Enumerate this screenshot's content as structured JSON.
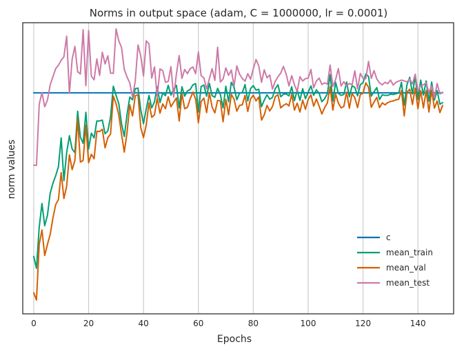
{
  "chart_data": {
    "type": "line",
    "title": "Norms in output space (adam, C = 1000000, lr = 0.0001)",
    "xlabel": "Epochs",
    "ylabel": "norm values",
    "xlim": [
      -4,
      153
    ],
    "ylim": [
      0,
      1
    ],
    "x_ticks": [
      0,
      20,
      40,
      60,
      80,
      100,
      120,
      140
    ],
    "y_ticks_shown": false,
    "grid": "vertical",
    "legend_position": "lower-right",
    "colors": {
      "c": "#0072B2",
      "mean_train": "#009E73",
      "mean_val": "#D55E00",
      "mean_test": "#CC79A7",
      "axes": "#262626",
      "grid": "#cccccc"
    },
    "series": [
      {
        "name": "c",
        "x": [
          0,
          149
        ],
        "values": [
          0.7702,
          0.7702
        ]
      },
      {
        "name": "mean_train",
        "x": [
          0,
          1,
          2,
          3,
          4,
          5,
          6,
          7,
          8,
          9,
          10,
          11,
          12,
          13,
          14,
          15,
          16,
          17,
          18,
          19,
          20,
          21,
          22,
          23,
          24,
          25,
          26,
          27,
          28,
          29,
          30,
          31,
          32,
          33,
          34,
          35,
          36,
          37,
          38,
          39,
          40,
          41,
          42,
          43,
          44,
          45,
          46,
          47,
          48,
          49,
          50,
          51,
          52,
          53,
          54,
          55,
          56,
          57,
          58,
          59,
          60,
          61,
          62,
          63,
          64,
          65,
          66,
          67,
          68,
          69,
          70,
          71,
          72,
          73,
          74,
          75,
          76,
          77,
          78,
          79,
          80,
          81,
          82,
          83,
          84,
          85,
          86,
          87,
          88,
          89,
          90,
          91,
          92,
          93,
          94,
          95,
          96,
          97,
          98,
          99,
          100,
          101,
          102,
          103,
          104,
          105,
          106,
          107,
          108,
          109,
          110,
          111,
          112,
          113,
          114,
          115,
          116,
          117,
          118,
          119,
          120,
          121,
          122,
          123,
          124,
          125,
          126,
          127,
          128,
          129,
          130,
          131,
          132,
          133,
          134,
          135,
          136,
          137,
          138,
          139,
          140,
          141,
          142,
          143,
          144,
          145,
          146,
          147,
          148,
          149
        ],
        "values": [
          0.182,
          0.139,
          0.287,
          0.372,
          0.292,
          0.33,
          0.409,
          0.445,
          0.472,
          0.504,
          0.608,
          0.454,
          0.555,
          0.616,
          0.568,
          0.555,
          0.704,
          0.611,
          0.589,
          0.7,
          0.568,
          0.625,
          0.608,
          0.669,
          0.669,
          0.672,
          0.623,
          0.633,
          0.684,
          0.794,
          0.761,
          0.731,
          0.659,
          0.613,
          0.692,
          0.755,
          0.745,
          0.785,
          0.787,
          0.709,
          0.659,
          0.712,
          0.761,
          0.716,
          0.738,
          0.792,
          0.735,
          0.77,
          0.76,
          0.797,
          0.762,
          0.783,
          0.797,
          0.716,
          0.792,
          0.758,
          0.777,
          0.782,
          0.799,
          0.803,
          0.701,
          0.793,
          0.798,
          0.758,
          0.804,
          0.76,
          0.754,
          0.786,
          0.764,
          0.716,
          0.794,
          0.738,
          0.808,
          0.79,
          0.745,
          0.769,
          0.771,
          0.8,
          0.741,
          0.785,
          0.796,
          0.78,
          0.783,
          0.72,
          0.744,
          0.763,
          0.747,
          0.754,
          0.785,
          0.799,
          0.756,
          0.765,
          0.766,
          0.759,
          0.792,
          0.742,
          0.78,
          0.743,
          0.785,
          0.749,
          0.772,
          0.795,
          0.761,
          0.781,
          0.768,
          0.738,
          0.749,
          0.767,
          0.836,
          0.74,
          0.808,
          0.768,
          0.761,
          0.764,
          0.809,
          0.756,
          0.795,
          0.79,
          0.759,
          0.799,
          0.807,
          0.838,
          0.829,
          0.758,
          0.774,
          0.789,
          0.746,
          0.763,
          0.761,
          0.761,
          0.765,
          0.764,
          0.767,
          0.769,
          0.808,
          0.726,
          0.799,
          0.826,
          0.766,
          0.83,
          0.746,
          0.816,
          0.762,
          0.813,
          0.74,
          0.809,
          0.744,
          0.778,
          0.729,
          0.735
        ]
      },
      {
        "name": "mean_val",
        "x": [
          0,
          1,
          2,
          3,
          4,
          5,
          6,
          7,
          8,
          9,
          10,
          11,
          12,
          13,
          14,
          15,
          16,
          17,
          18,
          19,
          20,
          21,
          22,
          23,
          24,
          25,
          26,
          27,
          28,
          29,
          30,
          31,
          32,
          33,
          34,
          35,
          36,
          37,
          38,
          39,
          40,
          41,
          42,
          43,
          44,
          45,
          46,
          47,
          48,
          49,
          50,
          51,
          52,
          53,
          54,
          55,
          56,
          57,
          58,
          59,
          60,
          61,
          62,
          63,
          64,
          65,
          66,
          67,
          68,
          69,
          70,
          71,
          72,
          73,
          74,
          75,
          76,
          77,
          78,
          79,
          80,
          81,
          82,
          83,
          84,
          85,
          86,
          87,
          88,
          89,
          90,
          91,
          92,
          93,
          94,
          95,
          96,
          97,
          98,
          99,
          100,
          101,
          102,
          103,
          104,
          105,
          106,
          107,
          108,
          109,
          110,
          111,
          112,
          113,
          114,
          115,
          116,
          117,
          118,
          119,
          120,
          121,
          122,
          123,
          124,
          125,
          126,
          127,
          128,
          129,
          130,
          131,
          132,
          133,
          134,
          135,
          136,
          137,
          138,
          139,
          140,
          141,
          142,
          143,
          144,
          145,
          146,
          147,
          148,
          149
        ],
        "values": [
          0.051,
          0.025,
          0.225,
          0.277,
          0.185,
          0.225,
          0.261,
          0.32,
          0.368,
          0.386,
          0.483,
          0.39,
          0.434,
          0.547,
          0.494,
          0.527,
          0.676,
          0.521,
          0.527,
          0.654,
          0.519,
          0.549,
          0.533,
          0.632,
          0.631,
          0.639,
          0.572,
          0.609,
          0.622,
          0.758,
          0.731,
          0.691,
          0.621,
          0.557,
          0.627,
          0.727,
          0.687,
          0.76,
          0.763,
          0.645,
          0.609,
          0.655,
          0.734,
          0.682,
          0.691,
          0.751,
          0.697,
          0.73,
          0.713,
          0.756,
          0.72,
          0.736,
          0.752,
          0.669,
          0.768,
          0.713,
          0.718,
          0.748,
          0.773,
          0.747,
          0.662,
          0.739,
          0.751,
          0.699,
          0.771,
          0.719,
          0.698,
          0.743,
          0.741,
          0.666,
          0.747,
          0.691,
          0.765,
          0.747,
          0.704,
          0.725,
          0.727,
          0.761,
          0.703,
          0.748,
          0.762,
          0.741,
          0.755,
          0.672,
          0.691,
          0.725,
          0.705,
          0.721,
          0.756,
          0.764,
          0.716,
          0.725,
          0.731,
          0.723,
          0.765,
          0.708,
          0.733,
          0.701,
          0.744,
          0.711,
          0.746,
          0.763,
          0.722,
          0.748,
          0.722,
          0.694,
          0.717,
          0.734,
          0.792,
          0.708,
          0.766,
          0.733,
          0.716,
          0.721,
          0.773,
          0.715,
          0.768,
          0.752,
          0.717,
          0.764,
          0.769,
          0.806,
          0.79,
          0.718,
          0.737,
          0.754,
          0.717,
          0.734,
          0.727,
          0.735,
          0.739,
          0.741,
          0.745,
          0.747,
          0.778,
          0.687,
          0.772,
          0.783,
          0.728,
          0.787,
          0.713,
          0.778,
          0.716,
          0.778,
          0.701,
          0.779,
          0.715,
          0.741,
          0.699,
          0.725
        ]
      },
      {
        "name": "mean_test",
        "x": [
          0,
          1,
          2,
          3,
          4,
          5,
          6,
          7,
          8,
          9,
          10,
          11,
          12,
          13,
          14,
          15,
          16,
          17,
          18,
          19,
          20,
          21,
          22,
          23,
          24,
          25,
          26,
          27,
          28,
          29,
          30,
          31,
          32,
          33,
          34,
          35,
          36,
          37,
          38,
          39,
          40,
          41,
          42,
          43,
          44,
          45,
          46,
          47,
          48,
          49,
          50,
          51,
          52,
          53,
          54,
          55,
          56,
          57,
          58,
          59,
          60,
          61,
          62,
          63,
          64,
          65,
          66,
          67,
          68,
          69,
          70,
          71,
          72,
          73,
          74,
          75,
          76,
          77,
          78,
          79,
          80,
          81,
          82,
          83,
          84,
          85,
          86,
          87,
          88,
          89,
          90,
          91,
          92,
          93,
          94,
          95,
          96,
          97,
          98,
          99,
          100,
          101,
          102,
          103,
          104,
          105,
          106,
          107,
          108,
          109,
          110,
          111,
          112,
          113,
          114,
          115,
          116,
          117,
          118,
          119,
          120,
          121,
          122,
          123,
          124,
          125,
          126,
          127,
          128,
          129,
          130,
          131,
          132,
          133,
          134,
          135,
          136,
          137,
          138,
          139,
          140,
          141,
          142,
          143,
          144,
          145,
          146,
          147,
          148,
          149
        ],
        "values": [
          0.51,
          0.509,
          0.729,
          0.771,
          0.72,
          0.744,
          0.799,
          0.828,
          0.857,
          0.869,
          0.887,
          0.9,
          0.974,
          0.768,
          0.891,
          0.937,
          0.846,
          0.838,
          0.997,
          0.796,
          0.994,
          0.83,
          0.817,
          0.892,
          0.833,
          0.916,
          0.874,
          0.903,
          0.841,
          0.84,
          1.0,
          0.957,
          0.933,
          0.854,
          0.827,
          0.806,
          0.754,
          0.813,
          0.942,
          0.903,
          0.831,
          0.957,
          0.946,
          0.823,
          0.863,
          0.755,
          0.856,
          0.85,
          0.808,
          0.811,
          0.864,
          0.755,
          0.839,
          0.904,
          0.822,
          0.854,
          0.839,
          0.857,
          0.863,
          0.839,
          0.917,
          0.832,
          0.824,
          0.784,
          0.821,
          0.857,
          0.815,
          0.934,
          0.809,
          0.82,
          0.86,
          0.833,
          0.852,
          0.794,
          0.867,
          0.837,
          0.822,
          0.812,
          0.839,
          0.819,
          0.856,
          0.89,
          0.867,
          0.808,
          0.853,
          0.824,
          0.834,
          0.784,
          0.811,
          0.828,
          0.841,
          0.865,
          0.837,
          0.795,
          0.832,
          0.799,
          0.775,
          0.828,
          0.813,
          0.821,
          0.823,
          0.854,
          0.788,
          0.813,
          0.823,
          0.8,
          0.806,
          0.801,
          0.87,
          0.793,
          0.818,
          0.857,
          0.795,
          0.81,
          0.794,
          0.804,
          0.799,
          0.849,
          0.784,
          0.84,
          0.822,
          0.821,
          0.883,
          0.822,
          0.85,
          0.82,
          0.806,
          0.799,
          0.808,
          0.803,
          0.816,
          0.798,
          0.808,
          0.812,
          0.816,
          0.813,
          0.809,
          0.82,
          0.802,
          0.837,
          0.776,
          0.796,
          0.799,
          0.806,
          0.771,
          0.796,
          0.752,
          0.804,
          0.766,
          0.772
        ]
      }
    ],
    "legend": [
      "c",
      "mean_train",
      "mean_val",
      "mean_test"
    ]
  }
}
